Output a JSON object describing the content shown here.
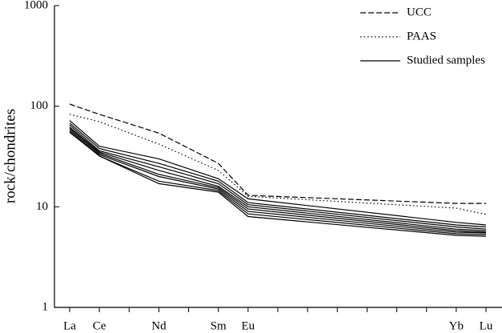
{
  "chart_data": {
    "type": "line",
    "y_label": "rock/chondrites",
    "y_scale": "log",
    "categories": [
      "La",
      "Ce",
      "Nd",
      "Sm",
      "Eu",
      "Yb",
      "Lu"
    ],
    "ylim": [
      1,
      1000
    ],
    "yticks": [
      1,
      10,
      100,
      1000
    ],
    "legend": "upper right",
    "series": [
      {
        "name": "UCC",
        "style": "dashed",
        "color": "#000000",
        "values": [
          105,
          83,
          54,
          27,
          13,
          10.8,
          10.8
        ]
      },
      {
        "name": "PAAS",
        "style": "dotted",
        "color": "#000000",
        "values": [
          83,
          70,
          42,
          23,
          12.7,
          9.7,
          8.4
        ]
      },
      {
        "name": "Studied samples",
        "style": "solid",
        "color": "#000000",
        "values": [
          72,
          40,
          30,
          19,
          12,
          7.0,
          6.6
        ]
      },
      {
        "style": "solid",
        "color": "#000000",
        "values": [
          68,
          38,
          27,
          18,
          11,
          6.6,
          6.3
        ]
      },
      {
        "style": "solid",
        "color": "#000000",
        "values": [
          65,
          36,
          25,
          17,
          10.5,
          6.3,
          6.0
        ]
      },
      {
        "style": "solid",
        "color": "#000000",
        "values": [
          62,
          35,
          23,
          16,
          10,
          6.0,
          5.8
        ]
      },
      {
        "style": "solid",
        "color": "#000000",
        "values": [
          60,
          34,
          21,
          15.5,
          9.5,
          5.8,
          5.6
        ]
      },
      {
        "style": "solid",
        "color": "#000000",
        "values": [
          58,
          33,
          20,
          15,
          9,
          5.6,
          5.5
        ]
      },
      {
        "style": "solid",
        "color": "#000000",
        "values": [
          56,
          32,
          18,
          14.5,
          8.5,
          5.4,
          5.3
        ]
      },
      {
        "style": "solid",
        "color": "#000000",
        "values": [
          55,
          32,
          17,
          14,
          8,
          5.2,
          5.1
        ]
      }
    ]
  }
}
